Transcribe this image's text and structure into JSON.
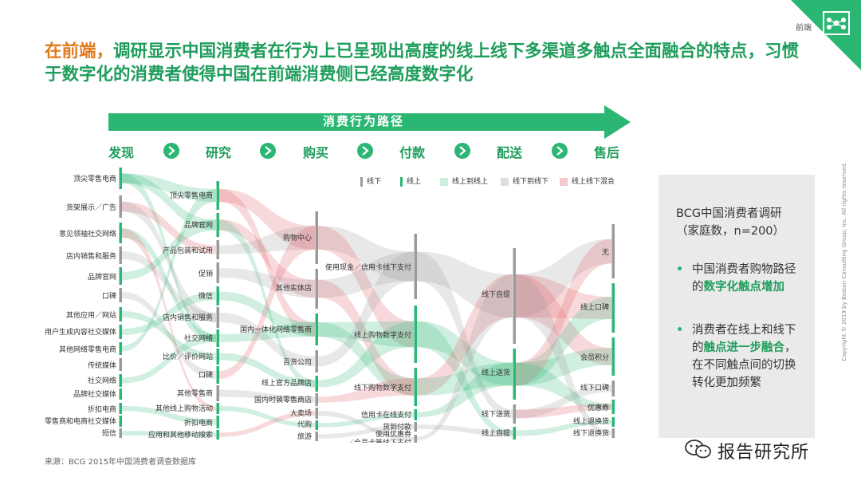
{
  "header": {
    "section_tag": "前端",
    "headline_accent": "在前端，",
    "headline_rest": "调研显示中国消费者在行为上已呈现出高度的线上线下多渠道多触点全面融合的特点，习惯于数字化的消费者使得中国在前端消费侧已经高度数字化"
  },
  "banner": {
    "title": "消费行为路径"
  },
  "stages": [
    "发现",
    "研究",
    "购买",
    "付款",
    "配送",
    "售后"
  ],
  "legend": [
    {
      "label": "线下",
      "color": "#9a9a9a",
      "kind": "bar"
    },
    {
      "label": "线上",
      "color": "#2bb673",
      "kind": "bar"
    },
    {
      "label": "线上到线上",
      "color": "#cdeedd",
      "kind": "box"
    },
    {
      "label": "线下到线下",
      "color": "#dedede",
      "kind": "box"
    },
    {
      "label": "线上线下混合",
      "color": "#f6c9cc",
      "kind": "box"
    }
  ],
  "columns": {
    "discover": [
      "顶尖零售电商",
      "货架展示／广告",
      "意见领袖社交网络",
      "店内销售和服务",
      "品牌官网",
      "口碑",
      "其他应用／网站",
      "用户生成内容社交媒体",
      "其他网络零售电商",
      "传统媒体",
      "社交网络",
      "品牌社交媒体",
      "折扣电商",
      "零售商和电商社交媒体",
      "短信"
    ],
    "research": [
      "顶尖零售电商",
      "品牌官网",
      "产品包装和试用",
      "促销",
      "微信",
      "店内销售和服务",
      "社交网络",
      "比价／评价网站",
      "口碑",
      "其他零售商",
      "其他线上购物活动",
      "折扣电商",
      "应用和其他移动搜索"
    ],
    "purchase": [
      "购物中心",
      "其他实体店",
      "国内一体化网络零售商",
      "百货公司",
      "线上官方品牌店",
      "国内时装零售商店",
      "大卖场",
      "代购",
      "旅游"
    ],
    "payment": [
      "使用现金／信用卡线下支付",
      "线上购物数字支付",
      "线下购物数字支付",
      "信用卡在线支付",
      "货到付款",
      "使用优惠券／会员卡等线下支付"
    ],
    "delivery": [
      "线下自提",
      "线上送货",
      "线下送货",
      "线上自提"
    ],
    "aftersales": [
      "无",
      "线上口碑",
      "会员积分",
      "线下口碑",
      "优惠券",
      "线上退换货",
      "线下退换货"
    ]
  },
  "panel": {
    "title": "BCG中国消费者调研（家庭数，n=200）",
    "bullets": [
      {
        "pre": "中国消费者购物路径的",
        "highlight": "数字化触点增加",
        "post": ""
      },
      {
        "pre": "消费者在线上和线下的",
        "highlight": "触点进一步融合",
        "post": "，在不同触点间的切换转化更加频繁"
      }
    ]
  },
  "source": "来源：BCG 2015年中国消费者调查数据库",
  "copyright": "Copyright © 2019 by Boston Consulting Group, Inc. All rights reserved.",
  "watermark": "报告研究所",
  "colors": {
    "accent_green": "#2bb673",
    "accent_orange": "#e07a1f",
    "offline_gray": "#9a9a9a"
  }
}
